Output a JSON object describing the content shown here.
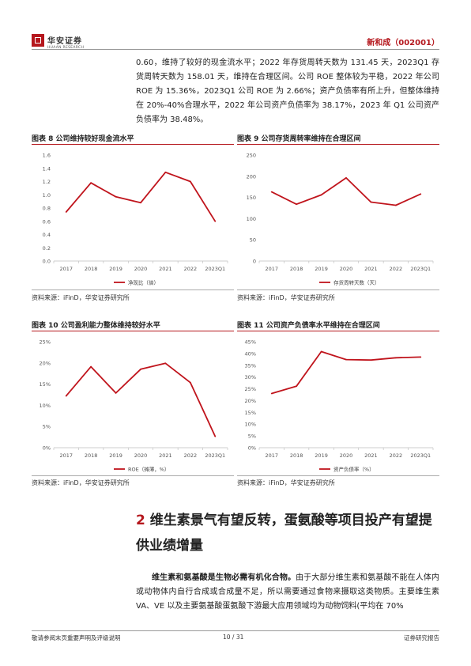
{
  "header": {
    "logo_cn": "华安证券",
    "logo_en": "HUAAN RESEARCH",
    "title": "新和成（002001）"
  },
  "intro_text": "0.60，维持了较好的现金流水平；2022 年存货周转天数为 131.45 天，2023Q1 存货周转天数为 158.01 天，维持在合理区间。公司 ROE 整体较为平稳，2022 年公司 ROE 为 15.36%，2023Q1 公司 ROE 为 2.66%；资产负债率有所上升，但整体维持在 20%-40%合理水平，2022 年公司资产负债率为 38.17%，2023 年 Q1 公司资产负债率为 38.48%。",
  "figures": [
    {
      "title": "图表 8 公司维持较好现金流水平",
      "source": "资料来源：iFinD，华安证券研究所"
    },
    {
      "title": "图表 9 公司存货周转率维持在合理区间",
      "source": "资料来源：iFinD，华安证券研究所"
    },
    {
      "title": "图表 10 公司盈利能力整体维持较好水平",
      "source": "资料来源：iFinD，华安证券研究所"
    },
    {
      "title": "图表 11 公司资产负债率水平维持在合理区间",
      "source": "资料来源：iFinD，华安证券研究所"
    }
  ],
  "chart_data": [
    {
      "type": "line",
      "categories": [
        "2017",
        "2018",
        "2019",
        "2020",
        "2021",
        "2022",
        "2023Q1"
      ],
      "series": [
        {
          "name": "净现比（倍）",
          "values": [
            0.74,
            1.18,
            0.97,
            0.88,
            1.34,
            1.2,
            0.6
          ]
        }
      ],
      "ylim": [
        0,
        1.6
      ],
      "yticks": [
        "0.0",
        "0.2",
        "0.4",
        "0.6",
        "0.8",
        "1.0",
        "1.2",
        "1.4",
        "1.6"
      ],
      "ytick_values": [
        0,
        0.2,
        0.4,
        0.6,
        0.8,
        1.0,
        1.2,
        1.4,
        1.6
      ],
      "legend_position": "bottom",
      "grid": false,
      "color": "#c0141c"
    },
    {
      "type": "line",
      "categories": [
        "2017",
        "2018",
        "2019",
        "2020",
        "2021",
        "2022",
        "2023Q1"
      ],
      "series": [
        {
          "name": "存货周转天数（天）",
          "values": [
            163,
            134,
            156,
            196,
            139,
            131.45,
            158.01
          ]
        }
      ],
      "ylim": [
        0,
        250
      ],
      "yticks": [
        "0",
        "50",
        "100",
        "150",
        "200",
        "250"
      ],
      "ytick_values": [
        0,
        50,
        100,
        150,
        200,
        250
      ],
      "legend_position": "bottom",
      "grid": false,
      "color": "#c0141c"
    },
    {
      "type": "line",
      "categories": [
        "2017",
        "2018",
        "2019",
        "2020",
        "2021",
        "2022",
        "2023Q1"
      ],
      "series": [
        {
          "name": "ROE（摊薄，%）",
          "values": [
            12.2,
            19.1,
            12.9,
            18.5,
            19.9,
            15.36,
            2.66
          ]
        }
      ],
      "ylim": [
        0,
        25
      ],
      "yticks": [
        "0%",
        "5%",
        "10%",
        "15%",
        "20%",
        "25%"
      ],
      "ytick_values": [
        0,
        5,
        10,
        15,
        20,
        25
      ],
      "legend_position": "bottom",
      "grid": false,
      "color": "#c0141c"
    },
    {
      "type": "line",
      "categories": [
        "2017",
        "2018",
        "2019",
        "2020",
        "2021",
        "2022",
        "2023Q1"
      ],
      "series": [
        {
          "name": "资产负债率（%）",
          "values": [
            23.0,
            26.1,
            40.8,
            37.4,
            37.2,
            38.17,
            38.48
          ]
        }
      ],
      "ylim": [
        0,
        45
      ],
      "yticks": [
        "0%",
        "5%",
        "10%",
        "15%",
        "20%",
        "25%",
        "30%",
        "35%",
        "40%",
        "45%"
      ],
      "ytick_values": [
        0,
        5,
        10,
        15,
        20,
        25,
        30,
        35,
        40,
        45
      ],
      "legend_position": "bottom",
      "grid": false,
      "color": "#c0141c"
    }
  ],
  "section": {
    "number": "2",
    "title": "维生素景气有望反转，蛋氨酸等项目投产有望提供业绩增量"
  },
  "body": {
    "lead": "维生素和氨基酸是生物必需有机化合物。",
    "text": "由于大部分维生素和氨基酸不能在人体内或动物体内自行合成或合成量不足，所以需要通过食物来摄取这类物质。主要维生素 VA、VE 以及主要氨基酸蛋氨酸下游最大应用领域均为动物饲料(平均在 70%"
  },
  "footer": {
    "disclaimer": "敬请参阅末页重要声明及评级说明",
    "page": "10 / 31",
    "report_type": "证券研究报告"
  }
}
